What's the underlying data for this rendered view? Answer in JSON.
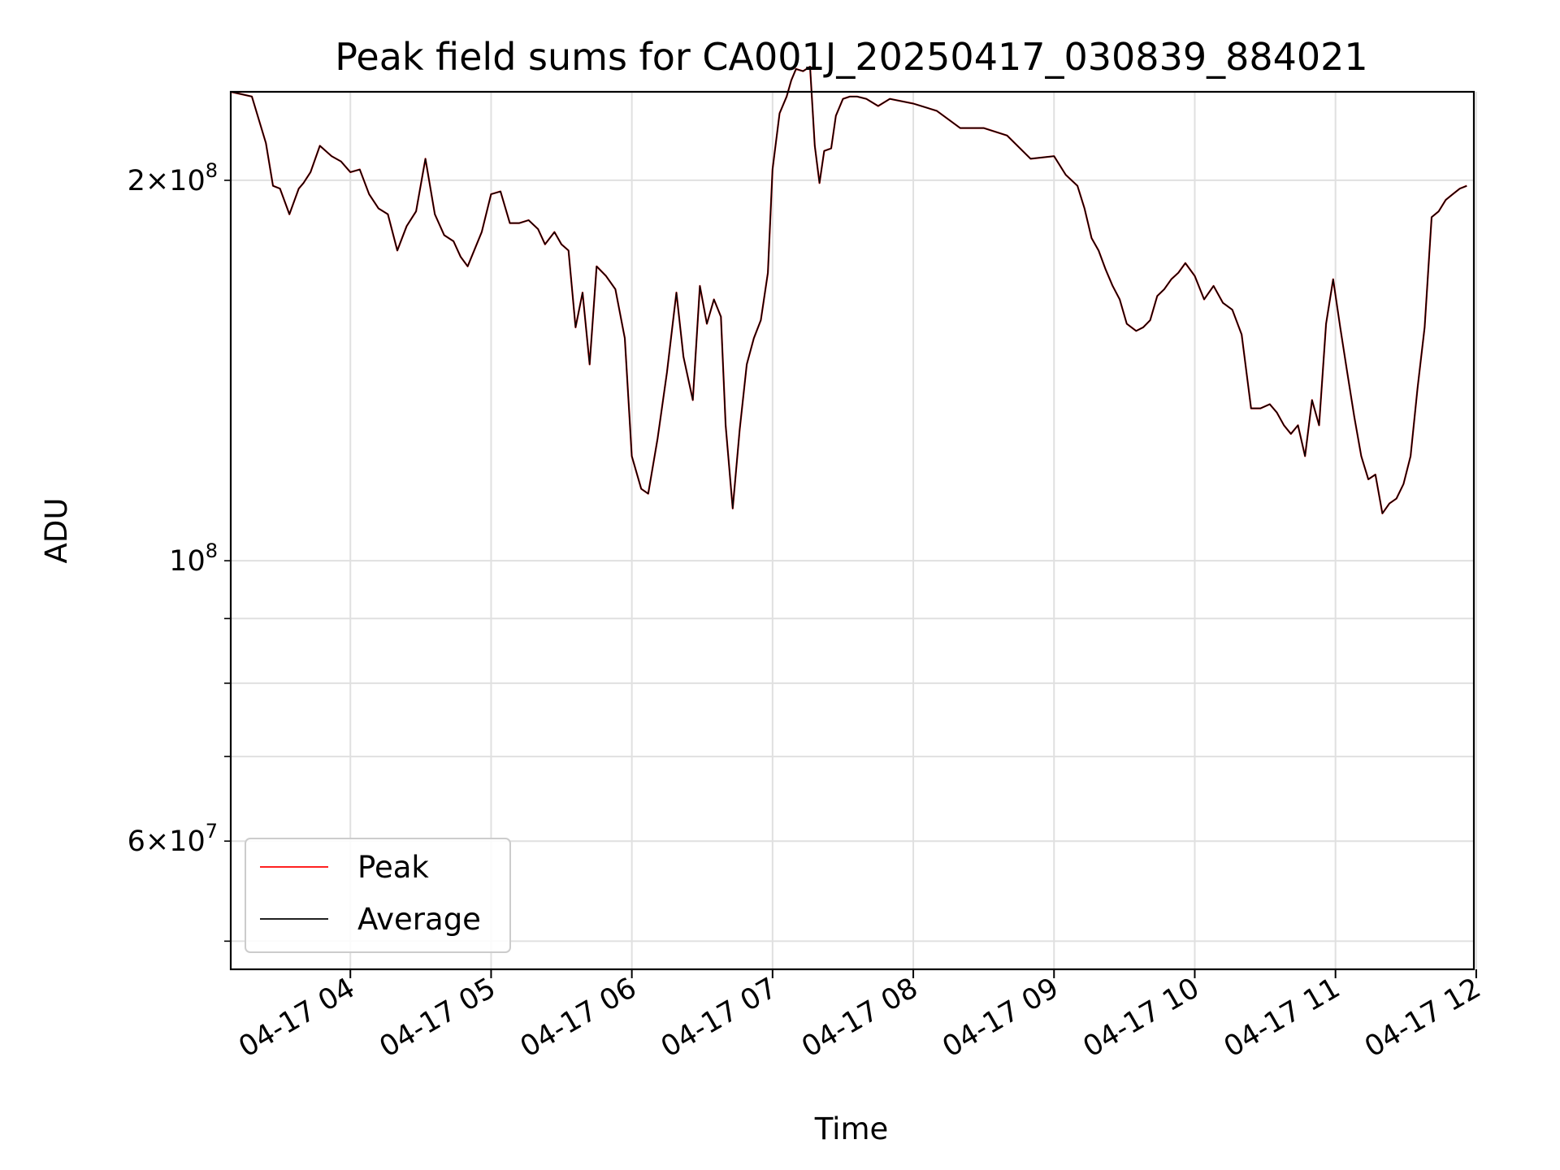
{
  "chart_data": {
    "type": "line",
    "title": "Peak field sums for CA001J_20250417_030839_884021",
    "xlabel": "Time",
    "ylabel": "ADU",
    "yscale": "log",
    "ylim": [
      47500000,
      235000000
    ],
    "xlim": [
      "04-17 03:09",
      "04-17 11:59"
    ],
    "grid": true,
    "legend_position": "lower-left",
    "x_ticks": [
      "04-17 04",
      "04-17 05",
      "04-17 06",
      "04-17 07",
      "04-17 08",
      "04-17 09",
      "04-17 10",
      "04-17 11",
      "04-17 12"
    ],
    "y_ticks": [
      {
        "label_html": "2×10⁸",
        "mantissa": "2",
        "exponent": "8"
      },
      {
        "label_html": "10⁸",
        "mantissa": "",
        "exponent": "8"
      },
      {
        "label_html": "6×10⁷",
        "mantissa": "6",
        "exponent": "7"
      }
    ],
    "colors": {
      "peak": "#ff0000",
      "average": "#000000",
      "grid": "#e0e0e0"
    },
    "series": [
      {
        "name": "Peak",
        "color": "#ff0000"
      },
      {
        "name": "Average",
        "color": "#000000"
      }
    ],
    "x": [
      "04-17 03:09",
      "04-17 03:18",
      "04-17 03:24",
      "04-17 03:27",
      "04-17 03:30",
      "04-17 03:34",
      "04-17 03:38",
      "04-17 03:40",
      "04-17 03:43",
      "04-17 03:47",
      "04-17 03:52",
      "04-17 03:56",
      "04-17 04:00",
      "04-17 04:04",
      "04-17 04:08",
      "04-17 04:12",
      "04-17 04:16",
      "04-17 04:20",
      "04-17 04:24",
      "04-17 04:28",
      "04-17 04:32",
      "04-17 04:36",
      "04-17 04:40",
      "04-17 04:44",
      "04-17 04:47",
      "04-17 04:50",
      "04-17 04:56",
      "04-17 05:00",
      "04-17 05:04",
      "04-17 05:08",
      "04-17 05:12",
      "04-17 05:16",
      "04-17 05:20",
      "04-17 05:23",
      "04-17 05:27",
      "04-17 05:30",
      "04-17 05:33",
      "04-17 05:36",
      "04-17 05:39",
      "04-17 05:42",
      "04-17 05:45",
      "04-17 05:49",
      "04-17 05:53",
      "04-17 05:57",
      "04-17 06:00",
      "04-17 06:04",
      "04-17 06:07",
      "04-17 06:11",
      "04-17 06:15",
      "04-17 06:19",
      "04-17 06:22",
      "04-17 06:26",
      "04-17 06:29",
      "04-17 06:32",
      "04-17 06:35",
      "04-17 06:38",
      "04-17 06:40",
      "04-17 06:43",
      "04-17 06:46",
      "04-17 06:49",
      "04-17 06:52",
      "04-17 06:55",
      "04-17 06:58",
      "04-17 07:00",
      "04-17 07:03",
      "04-17 07:06",
      "04-17 07:08",
      "04-17 07:10",
      "04-17 07:13",
      "04-17 07:16",
      "04-17 07:18",
      "04-17 07:20",
      "04-17 07:22",
      "04-17 07:25",
      "04-17 07:27",
      "04-17 07:30",
      "04-17 07:33",
      "04-17 07:36",
      "04-17 07:40",
      "04-17 07:45",
      "04-17 07:50",
      "04-17 08:00",
      "04-17 08:10",
      "04-17 08:20",
      "04-17 08:30",
      "04-17 08:40",
      "04-17 08:50",
      "04-17 09:00",
      "04-17 09:05",
      "04-17 09:10",
      "04-17 09:13",
      "04-17 09:16",
      "04-17 09:19",
      "04-17 09:22",
      "04-17 09:25",
      "04-17 09:28",
      "04-17 09:31",
      "04-17 09:35",
      "04-17 09:38",
      "04-17 09:41",
      "04-17 09:44",
      "04-17 09:47",
      "04-17 09:50",
      "04-17 09:53",
      "04-17 09:56",
      "04-17 10:00",
      "04-17 10:04",
      "04-17 10:08",
      "04-17 10:12",
      "04-17 10:16",
      "04-17 10:20",
      "04-17 10:24",
      "04-17 10:28",
      "04-17 10:32",
      "04-17 10:35",
      "04-17 10:38",
      "04-17 10:41",
      "04-17 10:44",
      "04-17 10:47",
      "04-17 10:50",
      "04-17 10:53",
      "04-17 10:56",
      "04-17 10:59",
      "04-17 11:02",
      "04-17 11:05",
      "04-17 11:08",
      "04-17 11:11",
      "04-17 11:14",
      "04-17 11:17",
      "04-17 11:20",
      "04-17 11:23",
      "04-17 11:26",
      "04-17 11:29",
      "04-17 11:32",
      "04-17 11:35",
      "04-17 11:38",
      "04-17 11:41",
      "04-17 11:44",
      "04-17 11:47",
      "04-17 11:50",
      "04-17 11:53",
      "04-17 11:56",
      "04-17 11:59"
    ],
    "values": {
      "average": [
        235,
        233,
        214,
        198,
        197,
        188,
        197,
        199,
        203,
        213,
        209,
        207,
        203,
        204,
        195,
        190,
        188,
        176,
        184,
        189,
        208,
        188,
        181,
        179,
        174,
        171,
        182,
        195,
        196,
        185,
        185,
        186,
        183,
        178,
        182,
        178,
        176,
        153,
        163,
        143,
        171,
        168,
        164,
        150,
        121,
        114,
        113,
        125,
        141,
        163,
        145,
        134,
        165,
        154,
        161,
        156,
        128,
        110,
        127,
        143,
        150,
        155,
        169,
        204,
        226,
        233,
        240,
        245,
        244,
        246,
        213,
        199,
        211,
        212,
        225,
        232,
        233,
        233,
        232,
        229,
        232,
        230,
        227,
        220,
        220,
        217,
        208,
        209,
        202,
        198,
        190,
        180,
        176,
        170,
        165,
        161,
        154,
        152,
        153,
        155,
        162,
        164,
        167,
        169,
        172,
        168,
        161,
        165,
        160,
        158,
        151,
        132,
        132,
        133,
        131,
        128,
        126,
        128,
        121,
        134,
        128,
        154,
        167,
        153,
        141,
        130,
        121,
        116,
        117,
        109,
        111,
        112,
        115,
        121,
        137,
        153,
        187,
        189,
        193,
        195,
        197,
        198
      ],
      "peak": [
        235,
        233,
        214,
        198,
        197,
        188,
        197,
        199,
        203,
        213,
        209,
        207,
        203,
        204,
        195,
        190,
        188,
        176,
        184,
        189,
        208,
        188,
        181,
        179,
        174,
        171,
        182,
        195,
        196,
        185,
        185,
        186,
        183,
        178,
        182,
        178,
        176,
        153,
        163,
        143,
        171,
        168,
        164,
        150,
        121,
        114,
        113,
        125,
        141,
        163,
        145,
        134,
        165,
        154,
        161,
        156,
        128,
        110,
        127,
        143,
        150,
        155,
        169,
        204,
        226,
        233,
        240,
        245,
        244,
        246,
        213,
        199,
        211,
        212,
        225,
        232,
        233,
        233,
        232,
        229,
        232,
        230,
        227,
        220,
        220,
        217,
        208,
        209,
        202,
        198,
        190,
        180,
        176,
        170,
        165,
        161,
        154,
        152,
        153,
        155,
        162,
        164,
        167,
        169,
        172,
        168,
        161,
        165,
        160,
        158,
        151,
        132,
        132,
        133,
        131,
        128,
        126,
        128,
        121,
        134,
        128,
        154,
        167,
        153,
        141,
        130,
        121,
        116,
        117,
        109,
        111,
        112,
        115,
        121,
        137,
        153,
        187,
        189,
        193,
        195,
        197,
        198
      ]
    }
  }
}
